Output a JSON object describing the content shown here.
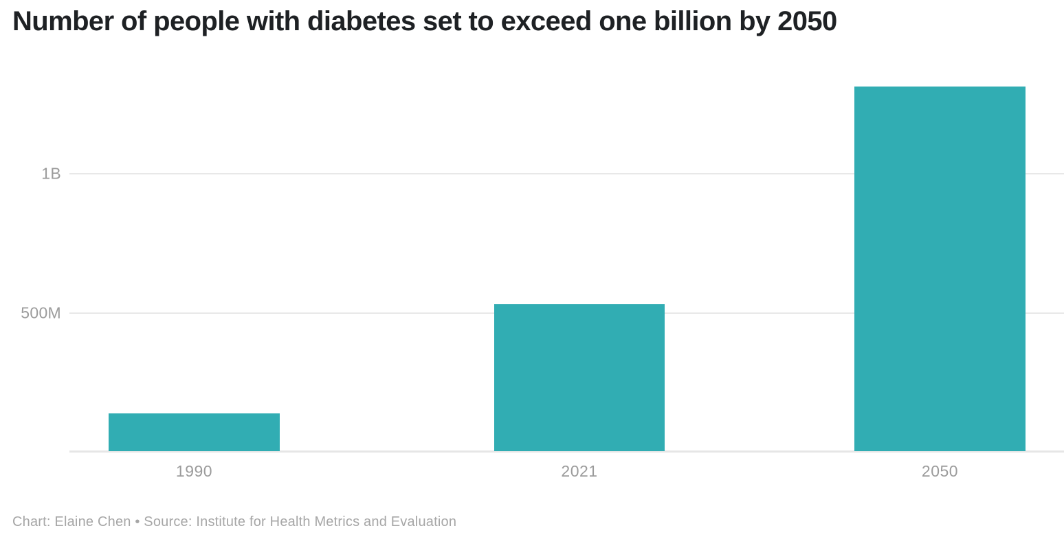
{
  "title": "Number of people with diabetes set to exceed one billion by 2050",
  "footer": {
    "text": "Chart: Elaine Chen • Source: Institute for Health Metrics and Evaluation"
  },
  "colors": {
    "background": "#ffffff",
    "bar": "#31adb3",
    "title_text": "#1e2124",
    "axis_label": "#9b9b9b",
    "gridline": "#e8e8e8",
    "baseline": "#e6e6e6",
    "footer_text": "#a6a6a6"
  },
  "chart_data": {
    "type": "bar",
    "title": "Number of people with diabetes set to exceed one billion by 2050",
    "categories": [
      "1990",
      "2021",
      "2050"
    ],
    "values": [
      135,
      529,
      1310
    ],
    "unit": "million people",
    "xlabel": "",
    "ylabel": "",
    "ylim": [
      0,
      1350
    ],
    "yticks": [
      {
        "value": 500,
        "label": "500M"
      },
      {
        "value": 1000,
        "label": "1B"
      }
    ],
    "grid": true,
    "legend": false,
    "credit": "Chart: Elaine Chen",
    "source": "Source: Institute for Health Metrics and Evaluation"
  }
}
